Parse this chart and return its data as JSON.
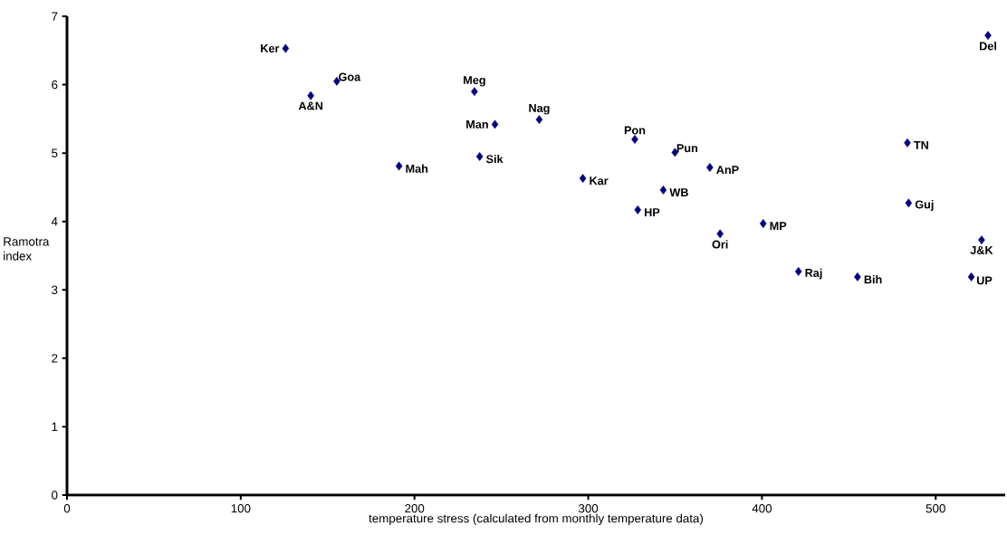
{
  "chart_data": {
    "type": "scatter",
    "xlabel": "temperature stress (calculated from monthly temperature data)",
    "ylabel": "Ramotra index",
    "x": [
      125.8,
      140.3,
      155.3,
      234.5,
      246.3,
      237.5,
      191.1,
      271.8,
      326.8,
      349.9,
      296.9,
      370,
      343.2,
      328.5,
      375.9,
      400.7,
      483.7,
      484.4,
      530.1,
      526.4,
      421,
      455,
      520.5
    ],
    "values": [
      6.53,
      5.84,
      6.05,
      5.9,
      5.42,
      4.95,
      4.81,
      5.49,
      5.2,
      5.01,
      4.63,
      4.79,
      4.46,
      4.17,
      3.82,
      3.97,
      5.15,
      4.27,
      6.72,
      3.73,
      3.27,
      3.19,
      3.19
    ],
    "value_labels": [
      "Ker",
      "A&N",
      "Goa",
      "Meg",
      "Man",
      "Sik",
      "Mah",
      "Nag",
      "Pon",
      "Pun",
      "Kar",
      "AnP",
      "WB",
      "HP",
      "Ori",
      "MP",
      "TN",
      "Guj",
      "Del",
      "J&K",
      "Raj",
      "Bih",
      "UP"
    ],
    "color": "#000080",
    "marker": "diamond",
    "xlim": [
      0,
      540
    ],
    "ylim": [
      0,
      7
    ],
    "xticks": [
      0,
      100,
      200,
      300,
      400,
      500
    ],
    "yticks": [
      0,
      1,
      2,
      3,
      4,
      5,
      6,
      7
    ],
    "grid": false
  }
}
